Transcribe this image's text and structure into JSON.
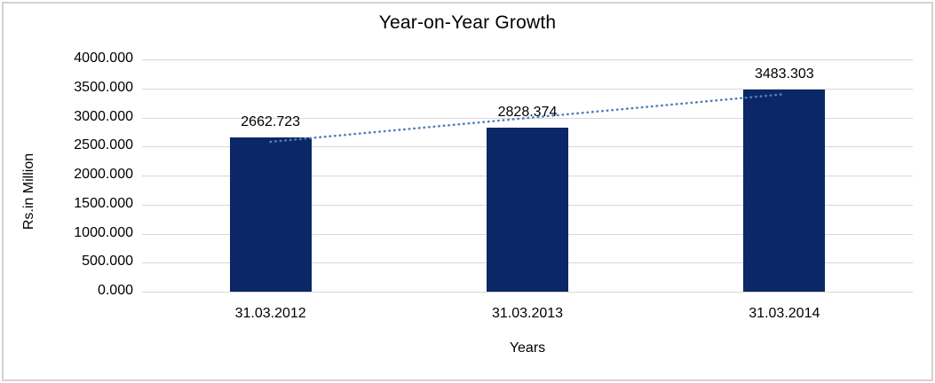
{
  "page": {
    "background": "#ffffff",
    "border_color": "#d2d2d2"
  },
  "chart_data": {
    "type": "bar",
    "title": "Year-on-Year Growth",
    "xlabel": "Years",
    "ylabel": "Rs.in Million",
    "categories": [
      "31.03.2012",
      "31.03.2013",
      "31.03.2014"
    ],
    "values": [
      2662.723,
      2828.374,
      3483.303
    ],
    "data_labels": [
      "2662.723",
      "2828.374",
      "3483.303"
    ],
    "yticks": [
      "4000.000",
      "3500.000",
      "3000.000",
      "2500.000",
      "2000.000",
      "1500.000",
      "1000.000",
      "500.000",
      "0.000"
    ],
    "ylim": [
      0,
      4000
    ],
    "grid": "horizontal",
    "legend_position": "none",
    "bar_color": "#0c2767",
    "gridline_color": "#d8d8d8",
    "trendline": {
      "type": "linear",
      "style": "dotted",
      "color": "#4f81bd"
    }
  }
}
